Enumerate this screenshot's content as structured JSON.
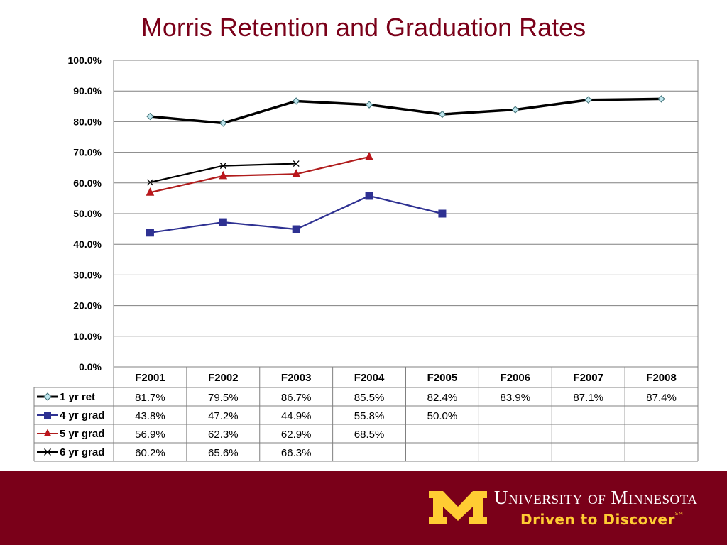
{
  "title": "Morris Retention and Graduation Rates",
  "chart_data": {
    "type": "line",
    "title": "Morris Retention and Graduation Rates",
    "categories": [
      "F2001",
      "F2002",
      "F2003",
      "F2004",
      "F2005",
      "F2006",
      "F2007",
      "F2008"
    ],
    "ylim": [
      0,
      100
    ],
    "y_ticks": [
      "0.0%",
      "10.0%",
      "20.0%",
      "30.0%",
      "40.0%",
      "50.0%",
      "60.0%",
      "70.0%",
      "80.0%",
      "90.0%",
      "100.0%"
    ],
    "grid": true,
    "legend": "data-table",
    "series": [
      {
        "name": "1 yr ret",
        "values": [
          81.7,
          79.5,
          86.7,
          85.5,
          82.4,
          83.9,
          87.1,
          87.4
        ],
        "labels": [
          "81.7%",
          "79.5%",
          "86.7%",
          "85.5%",
          "82.4%",
          "83.9%",
          "87.1%",
          "87.4%"
        ],
        "color": "#000000",
        "marker": "diamond",
        "marker_fill": "#bfe6ee",
        "bold_line": true
      },
      {
        "name": "4 yr grad",
        "values": [
          43.8,
          47.2,
          44.9,
          55.8,
          50.0,
          null,
          null,
          null
        ],
        "labels": [
          "43.8%",
          "47.2%",
          "44.9%",
          "55.8%",
          "50.0%",
          "",
          "",
          ""
        ],
        "color": "#2e3192",
        "marker": "square",
        "marker_fill": "#2e3192"
      },
      {
        "name": "5 yr grad",
        "values": [
          56.9,
          62.3,
          62.9,
          68.5,
          null,
          null,
          null,
          null
        ],
        "labels": [
          "56.9%",
          "62.3%",
          "62.9%",
          "68.5%",
          "",
          "",
          "",
          ""
        ],
        "color": "#b01c1c",
        "marker": "triangle",
        "marker_fill": "#c0141c"
      },
      {
        "name": "6 yr grad",
        "values": [
          60.2,
          65.6,
          66.3,
          null,
          null,
          null,
          null,
          null
        ],
        "labels": [
          "60.2%",
          "65.6%",
          "66.3%",
          "",
          "",
          "",
          "",
          ""
        ],
        "color": "#000000",
        "marker": "x",
        "marker_fill": "none"
      }
    ]
  },
  "footer": {
    "university": "University of Minnesota",
    "tagline": "Driven to Discover",
    "tagline_mark": "SM",
    "logo_color": "#ffcc33",
    "brand_color": "#7a0019"
  }
}
